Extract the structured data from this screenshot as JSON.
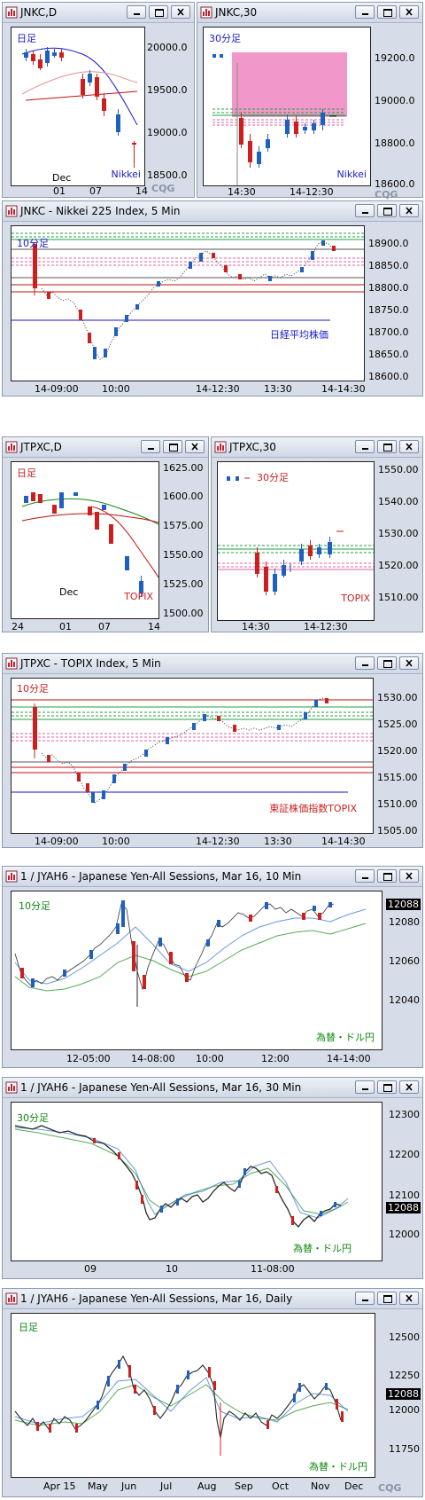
{
  "colors": {
    "up": "#1f5fbf",
    "down": "#cc1f1f",
    "pink_zone": "#ef8cc4",
    "green_line": "#20a040",
    "blue_line": "#1a1acc",
    "red_line": "#c01010"
  },
  "logo_text": "CQG",
  "windows": [
    {
      "title": "JNKC,D",
      "corner_label": "日足",
      "corner_color": "#1a1acc",
      "right_label": "Nikkei",
      "right_color": "#1a1acc",
      "y_ticks": [
        "20000.0",
        "19500.0",
        "19000.0",
        "18500.0"
      ],
      "x_ticks": [
        "01",
        "07",
        "14"
      ],
      "x_month": "Dec"
    },
    {
      "title": "JNKC,30",
      "corner_label": "30分足",
      "corner_color": "#1a1acc",
      "right_label": "Nikkei",
      "right_color": "#1a1acc",
      "y_ticks": [
        "19200.0",
        "19000.0",
        "18800.0",
        "18600.0"
      ],
      "x_ticks": [
        "14:30",
        "14-12:30"
      ]
    },
    {
      "title": "JNKC - Nikkei 225 Index, 5 Min",
      "corner_label": "10分足",
      "corner_color": "#1a1acc",
      "right_label": "日経平均株価",
      "right_color": "#1a1acc",
      "y_ticks": [
        "18900.0",
        "18850.0",
        "18800.0",
        "18750.0",
        "18700.0",
        "18650.0",
        "18600.0"
      ],
      "x_ticks": [
        "14-09:00",
        "10:00",
        "14-12:30",
        "13:30",
        "14-14:30"
      ]
    },
    {
      "title": "JTPXC,D",
      "corner_label": "日足",
      "corner_color": "#cc1f1f",
      "right_label": "TOPIX",
      "right_color": "#cc1f1f",
      "y_ticks": [
        "1625.00",
        "1600.00",
        "1575.00",
        "1550.00",
        "1525.00",
        "1500.00"
      ],
      "x_ticks": [
        "24",
        "01",
        "07",
        "14"
      ],
      "x_month": "Dec"
    },
    {
      "title": "JTPXC,30",
      "corner_label": "30分足",
      "corner_color": "#cc1f1f",
      "right_label": "TOPIX",
      "right_color": "#cc1f1f",
      "y_ticks": [
        "1550.00",
        "1540.00",
        "1530.00",
        "1520.00",
        "1510.00"
      ],
      "x_ticks": [
        "14:30",
        "14-12:30"
      ]
    },
    {
      "title": "JTPXC - TOPIX Index, 5 Min",
      "corner_label": "10分足",
      "corner_color": "#cc1f1f",
      "right_label": "東証株価指数TOPIX",
      "right_color": "#cc1f1f",
      "y_ticks": [
        "1530.00",
        "1525.00",
        "1520.00",
        "1515.00",
        "1510.00",
        "1505.00"
      ],
      "x_ticks": [
        "14-09:00",
        "10:00",
        "14-12:30",
        "13:30",
        "14-14:30"
      ]
    },
    {
      "title": "1 / JYAH6 - Japanese Yen-All Sessions, Mar 16, 10 Min",
      "corner_label": "10分足",
      "corner_color": "#118811",
      "right_label": "為替・ドル円",
      "right_color": "#118811",
      "y_ticks": [
        "12080",
        "12060",
        "12040"
      ],
      "last_price": "12088",
      "x_ticks": [
        "12-05:00",
        "14-08:00",
        "10:00",
        "12:00",
        "14-14:00"
      ]
    },
    {
      "title": "1 / JYAH6 - Japanese Yen-All Sessions, Mar 16, 30 Min",
      "corner_label": "30分足",
      "corner_color": "#118811",
      "right_label": "為替・ドル円",
      "right_color": "#118811",
      "y_ticks": [
        "12300",
        "12200",
        "12100",
        "12000"
      ],
      "last_price": "12088",
      "x_ticks": [
        "09",
        "10",
        "11-08:00"
      ]
    },
    {
      "title": "1 / JYAH6 - Japanese Yen-All Sessions, Mar 16, Daily",
      "corner_label": "日足",
      "corner_color": "#118811",
      "right_label": "為替・ドル円",
      "right_color": "#118811",
      "y_ticks": [
        "12500",
        "12250",
        "12000",
        "11750"
      ],
      "last_price": "12088",
      "x_ticks": [
        "Apr 15",
        "May",
        "Jun",
        "Jul",
        "Aug",
        "Sep",
        "Oct",
        "Nov",
        "Dec"
      ]
    }
  ]
}
